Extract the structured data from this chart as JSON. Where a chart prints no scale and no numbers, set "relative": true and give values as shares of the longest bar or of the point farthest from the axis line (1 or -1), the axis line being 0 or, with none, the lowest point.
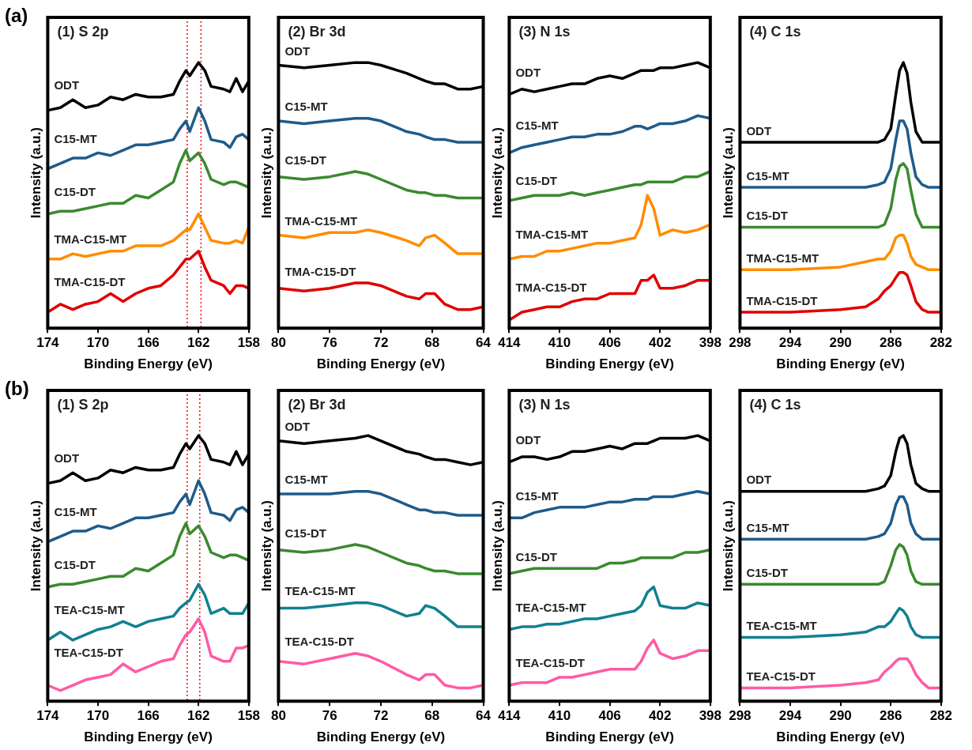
{
  "chart_data": [
    {
      "type": "line",
      "title": "(1) S 2p",
      "xlabel": "Binding Energy (eV)",
      "ylabel": "Intensity (a.u.)",
      "relative": true,
      "tick_labels": "x",
      "xlim": [
        174,
        158
      ],
      "xticks": [
        174,
        170,
        166,
        162,
        158
      ],
      "annotations": [
        "(a)"
      ],
      "ref_lines": [
        {
          "axis": "x",
          "value": 162.9,
          "color": "#ff0000",
          "line_style": "dotted"
        },
        {
          "axis": "x",
          "value": 161.8,
          "color": "#ff0000",
          "line_style": "dotted"
        }
      ],
      "x": [
        174,
        173,
        172,
        171,
        170,
        169,
        168,
        167,
        166,
        165,
        164,
        163.5,
        163,
        162.7,
        162,
        161.5,
        161,
        160,
        159.5,
        159,
        158.5,
        158
      ],
      "series": [
        {
          "name": "ODT",
          "color": "#000000",
          "values": [
            0.82,
            0.83,
            0.86,
            0.83,
            0.84,
            0.87,
            0.86,
            0.88,
            0.87,
            0.87,
            0.88,
            0.93,
            0.97,
            0.95,
            1,
            0.97,
            0.91,
            0.9,
            0.89,
            0.94,
            0.89,
            0.93
          ]
        },
        {
          "name": "C15-MT",
          "color": "#1f5b8a",
          "values": [
            0.6,
            0.62,
            0.64,
            0.64,
            0.66,
            0.65,
            0.67,
            0.69,
            0.69,
            0.7,
            0.71,
            0.75,
            0.78,
            0.74,
            0.83,
            0.78,
            0.71,
            0.7,
            0.68,
            0.72,
            0.73,
            0.71
          ]
        },
        {
          "name": "C15-DT",
          "color": "#3a8a2e",
          "values": [
            0.43,
            0.44,
            0.44,
            0.45,
            0.46,
            0.47,
            0.47,
            0.5,
            0.49,
            0.52,
            0.55,
            0.62,
            0.67,
            0.63,
            0.66,
            0.62,
            0.56,
            0.54,
            0.55,
            0.55,
            0.54,
            0.53
          ]
        },
        {
          "name": "TMA-C15-MT",
          "color": "#ff8c00",
          "values": [
            0.26,
            0.26,
            0.28,
            0.27,
            0.28,
            0.29,
            0.29,
            0.31,
            0.31,
            0.31,
            0.33,
            0.35,
            0.37,
            0.37,
            0.43,
            0.38,
            0.33,
            0.32,
            0.32,
            0.33,
            0.32,
            0.38
          ]
        },
        {
          "name": "TMA-C15-DT",
          "color": "#e00000",
          "values": [
            0.06,
            0.09,
            0.07,
            0.09,
            0.1,
            0.13,
            0.1,
            0.13,
            0.15,
            0.16,
            0.2,
            0.23,
            0.26,
            0.26,
            0.29,
            0.23,
            0.18,
            0.16,
            0.13,
            0.16,
            0.16,
            0.15
          ]
        }
      ]
    },
    {
      "type": "line",
      "title": "(2) Br 3d",
      "xlabel": "Binding Energy (eV)",
      "ylabel": "Intensity (a.u.)",
      "relative": true,
      "tick_labels": "x",
      "xlim": [
        80,
        64
      ],
      "xticks": [
        80,
        76,
        72,
        68,
        64
      ],
      "x": [
        80,
        78,
        76,
        74,
        73,
        72,
        70,
        69,
        68.5,
        67.8,
        67,
        66,
        65,
        64
      ],
      "series": [
        {
          "name": "ODT",
          "color": "#000000",
          "values": [
            0.99,
            0.98,
            0.99,
            1,
            1,
            0.99,
            0.96,
            0.94,
            0.93,
            0.92,
            0.92,
            0.9,
            0.9,
            0.91
          ]
        },
        {
          "name": "C15-MT",
          "color": "#1f5b8a",
          "values": [
            0.78,
            0.77,
            0.78,
            0.79,
            0.79,
            0.78,
            0.74,
            0.73,
            0.72,
            0.71,
            0.71,
            0.7,
            0.7,
            0.7
          ]
        },
        {
          "name": "C15-DT",
          "color": "#3a8a2e",
          "values": [
            0.57,
            0.56,
            0.57,
            0.59,
            0.58,
            0.56,
            0.52,
            0.51,
            0.51,
            0.5,
            0.5,
            0.49,
            0.49,
            0.49
          ]
        },
        {
          "name": "TMA-C15-MT",
          "color": "#ff8c00",
          "values": [
            0.35,
            0.34,
            0.36,
            0.36,
            0.37,
            0.36,
            0.33,
            0.31,
            0.34,
            0.35,
            0.32,
            0.28,
            0.28,
            0.28
          ]
        },
        {
          "name": "TMA-C15-DT",
          "color": "#e00000",
          "values": [
            0.15,
            0.14,
            0.15,
            0.17,
            0.17,
            0.16,
            0.12,
            0.11,
            0.13,
            0.13,
            0.09,
            0.07,
            0.07,
            0.08
          ]
        }
      ]
    },
    {
      "type": "line",
      "title": "(3) N 1s",
      "xlabel": "Binding Energy (eV)",
      "ylabel": "Intensity (a.u.)",
      "relative": true,
      "tick_labels": "x",
      "xlim": [
        414,
        398
      ],
      "xticks": [
        414,
        410,
        406,
        402,
        398
      ],
      "x": [
        414,
        413,
        412,
        411,
        410,
        409,
        408,
        407,
        406,
        405,
        404,
        403.5,
        403,
        402.5,
        402,
        401,
        400,
        399,
        398
      ],
      "series": [
        {
          "name": "ODT",
          "color": "#000000",
          "values": [
            0.88,
            0.9,
            0.89,
            0.9,
            0.91,
            0.92,
            0.92,
            0.94,
            0.95,
            0.94,
            0.96,
            0.97,
            0.97,
            0.97,
            0.98,
            0.98,
            0.99,
            1,
            0.98
          ]
        },
        {
          "name": "C15-MT",
          "color": "#1f5b8a",
          "values": [
            0.66,
            0.68,
            0.69,
            0.7,
            0.71,
            0.72,
            0.72,
            0.73,
            0.73,
            0.74,
            0.76,
            0.76,
            0.75,
            0.76,
            0.77,
            0.77,
            0.78,
            0.8,
            0.79
          ]
        },
        {
          "name": "C15-DT",
          "color": "#3a8a2e",
          "values": [
            0.48,
            0.49,
            0.5,
            0.5,
            0.5,
            0.51,
            0.5,
            0.51,
            0.52,
            0.53,
            0.54,
            0.54,
            0.55,
            0.55,
            0.55,
            0.55,
            0.57,
            0.57,
            0.59
          ]
        },
        {
          "name": "TMA-C15-MT",
          "color": "#ff8c00",
          "values": [
            0.26,
            0.27,
            0.27,
            0.29,
            0.29,
            0.3,
            0.31,
            0.32,
            0.32,
            0.33,
            0.34,
            0.39,
            0.5,
            0.45,
            0.35,
            0.37,
            0.36,
            0.37,
            0.39
          ]
        },
        {
          "name": "TMA-C15-DT",
          "color": "#e00000",
          "values": [
            0.03,
            0.06,
            0.07,
            0.08,
            0.08,
            0.1,
            0.11,
            0.11,
            0.13,
            0.13,
            0.13,
            0.18,
            0.18,
            0.2,
            0.15,
            0.15,
            0.16,
            0.18,
            0.18
          ]
        }
      ]
    },
    {
      "type": "line",
      "title": "(4) C 1s",
      "xlabel": "Binding Energy (eV)",
      "ylabel": "Intensity (a.u.)",
      "relative": true,
      "tick_labels": "x",
      "xlim": [
        298,
        282
      ],
      "xticks": [
        298,
        294,
        290,
        286,
        282
      ],
      "x": [
        298,
        294,
        290,
        288,
        287,
        286.5,
        286,
        285.6,
        285.3,
        285,
        284.7,
        284.4,
        284,
        283.5,
        283,
        282
      ],
      "series": [
        {
          "name": "ODT",
          "color": "#000000",
          "values": [
            0.7,
            0.7,
            0.7,
            0.7,
            0.7,
            0.71,
            0.75,
            0.88,
            0.97,
            1,
            0.96,
            0.85,
            0.74,
            0.7,
            0.7,
            0.7
          ]
        },
        {
          "name": "C15-MT",
          "color": "#1f5b8a",
          "values": [
            0.53,
            0.53,
            0.53,
            0.53,
            0.54,
            0.55,
            0.6,
            0.71,
            0.78,
            0.78,
            0.75,
            0.66,
            0.57,
            0.54,
            0.53,
            0.53
          ]
        },
        {
          "name": "C15-DT",
          "color": "#3a8a2e",
          "values": [
            0.38,
            0.38,
            0.38,
            0.38,
            0.38,
            0.39,
            0.45,
            0.56,
            0.61,
            0.62,
            0.6,
            0.52,
            0.43,
            0.38,
            0.38,
            0.38
          ]
        },
        {
          "name": "TMA-C15-MT",
          "color": "#ff8c00",
          "values": [
            0.22,
            0.22,
            0.23,
            0.25,
            0.26,
            0.26,
            0.29,
            0.34,
            0.35,
            0.35,
            0.32,
            0.27,
            0.24,
            0.23,
            0.22,
            0.22
          ]
        },
        {
          "name": "TMA-C15-DT",
          "color": "#e00000",
          "values": [
            0.06,
            0.06,
            0.07,
            0.08,
            0.11,
            0.14,
            0.16,
            0.19,
            0.21,
            0.21,
            0.2,
            0.16,
            0.1,
            0.07,
            0.06,
            0.06
          ]
        }
      ]
    },
    {
      "type": "line",
      "title": "(1) S 2p",
      "xlabel": "Binding Energy (eV)",
      "ylabel": "Intensity (a.u.)",
      "relative": true,
      "tick_labels": "x",
      "xlim": [
        174,
        158
      ],
      "xticks": [
        174,
        170,
        166,
        162,
        158
      ],
      "annotations": [
        "(b)"
      ],
      "ref_lines": [
        {
          "axis": "x",
          "value": 162.9,
          "color": "#ff0000",
          "line_style": "dotted"
        },
        {
          "axis": "x",
          "value": 161.9,
          "color": "#ff0000",
          "line_style": "dotted"
        }
      ],
      "x": [
        174,
        173,
        172,
        171,
        170,
        169,
        168,
        167,
        166,
        165,
        164,
        163.5,
        163,
        162.7,
        162,
        161.5,
        161,
        160,
        159.5,
        159,
        158.5,
        158
      ],
      "series": [
        {
          "name": "ODT",
          "color": "#000000",
          "values": [
            0.82,
            0.83,
            0.86,
            0.83,
            0.84,
            0.87,
            0.86,
            0.88,
            0.87,
            0.87,
            0.88,
            0.93,
            0.97,
            0.95,
            1,
            0.97,
            0.91,
            0.9,
            0.89,
            0.94,
            0.89,
            0.93
          ]
        },
        {
          "name": "C15-MT",
          "color": "#1f5b8a",
          "values": [
            0.6,
            0.62,
            0.64,
            0.64,
            0.66,
            0.65,
            0.67,
            0.69,
            0.69,
            0.7,
            0.71,
            0.75,
            0.78,
            0.74,
            0.83,
            0.78,
            0.71,
            0.7,
            0.68,
            0.72,
            0.73,
            0.71
          ]
        },
        {
          "name": "C15-DT",
          "color": "#3a8a2e",
          "values": [
            0.43,
            0.44,
            0.44,
            0.45,
            0.46,
            0.47,
            0.47,
            0.5,
            0.49,
            0.52,
            0.55,
            0.62,
            0.67,
            0.63,
            0.66,
            0.62,
            0.56,
            0.54,
            0.55,
            0.55,
            0.54,
            0.53
          ]
        },
        {
          "name": "TEA-C15-MT",
          "color": "#118090",
          "values": [
            0.23,
            0.26,
            0.23,
            0.25,
            0.27,
            0.28,
            0.3,
            0.28,
            0.3,
            0.31,
            0.32,
            0.35,
            0.37,
            0.38,
            0.44,
            0.4,
            0.33,
            0.35,
            0.33,
            0.33,
            0.33,
            0.37
          ]
        },
        {
          "name": "TEA-C15-DT",
          "color": "#ff5aa5",
          "values": [
            0.06,
            0.04,
            0.06,
            0.08,
            0.09,
            0.1,
            0.14,
            0.11,
            0.13,
            0.15,
            0.16,
            0.21,
            0.25,
            0.26,
            0.31,
            0.26,
            0.17,
            0.15,
            0.15,
            0.2,
            0.2,
            0.21
          ]
        }
      ]
    },
    {
      "type": "line",
      "title": "(2) Br 3d",
      "xlabel": "Binding Energy (eV)",
      "ylabel": "Intensity (a.u.)",
      "relative": true,
      "tick_labels": "x",
      "xlim": [
        80,
        64
      ],
      "xticks": [
        80,
        76,
        72,
        68,
        64
      ],
      "x": [
        80,
        78,
        76,
        74,
        73,
        72,
        70,
        69,
        68.5,
        67.8,
        67,
        66,
        65,
        64
      ],
      "series": [
        {
          "name": "ODT",
          "color": "#000000",
          "values": [
            0.98,
            0.97,
            0.98,
            0.99,
            1,
            0.98,
            0.94,
            0.93,
            0.92,
            0.91,
            0.91,
            0.9,
            0.89,
            0.9
          ]
        },
        {
          "name": "C15-MT",
          "color": "#1f5b8a",
          "values": [
            0.78,
            0.78,
            0.78,
            0.79,
            0.79,
            0.78,
            0.74,
            0.72,
            0.72,
            0.71,
            0.71,
            0.7,
            0.7,
            0.7
          ]
        },
        {
          "name": "C15-DT",
          "color": "#3a8a2e",
          "values": [
            0.57,
            0.56,
            0.57,
            0.59,
            0.58,
            0.56,
            0.52,
            0.51,
            0.5,
            0.49,
            0.49,
            0.48,
            0.48,
            0.48
          ]
        },
        {
          "name": "TEA-C15-MT",
          "color": "#118090",
          "values": [
            0.35,
            0.35,
            0.36,
            0.37,
            0.37,
            0.36,
            0.32,
            0.33,
            0.36,
            0.35,
            0.32,
            0.28,
            0.28,
            0.28
          ]
        },
        {
          "name": "TEA-C15-DT",
          "color": "#ff5aa5",
          "values": [
            0.15,
            0.14,
            0.16,
            0.18,
            0.17,
            0.15,
            0.1,
            0.08,
            0.1,
            0.1,
            0.06,
            0.05,
            0.05,
            0.06
          ]
        }
      ]
    },
    {
      "type": "line",
      "title": "(3) N 1s",
      "xlabel": "Binding Energy (eV)",
      "ylabel": "Intensity (a.u.)",
      "relative": true,
      "tick_labels": "x",
      "xlim": [
        414,
        398
      ],
      "xticks": [
        414,
        410,
        406,
        402,
        398
      ],
      "x": [
        414,
        413,
        412,
        411,
        410,
        409,
        408,
        407,
        406,
        405,
        404,
        403.5,
        403,
        402.5,
        402,
        401,
        400,
        399,
        398
      ],
      "series": [
        {
          "name": "ODT",
          "color": "#000000",
          "values": [
            0.9,
            0.92,
            0.92,
            0.91,
            0.92,
            0.94,
            0.94,
            0.95,
            0.96,
            0.95,
            0.97,
            0.97,
            0.97,
            0.98,
            0.99,
            0.99,
            0.99,
            1,
            0.98
          ]
        },
        {
          "name": "C15-MT",
          "color": "#1f5b8a",
          "values": [
            0.69,
            0.69,
            0.71,
            0.72,
            0.73,
            0.73,
            0.73,
            0.74,
            0.75,
            0.75,
            0.76,
            0.76,
            0.76,
            0.77,
            0.77,
            0.77,
            0.78,
            0.79,
            0.78
          ]
        },
        {
          "name": "C15-DT",
          "color": "#3a8a2e",
          "values": [
            0.48,
            0.49,
            0.5,
            0.5,
            0.5,
            0.5,
            0.5,
            0.5,
            0.52,
            0.52,
            0.53,
            0.54,
            0.54,
            0.54,
            0.54,
            0.54,
            0.56,
            0.56,
            0.57
          ]
        },
        {
          "name": "TEA-C15-MT",
          "color": "#118090",
          "values": [
            0.27,
            0.28,
            0.28,
            0.29,
            0.29,
            0.3,
            0.31,
            0.31,
            0.32,
            0.33,
            0.34,
            0.36,
            0.41,
            0.43,
            0.36,
            0.35,
            0.35,
            0.37,
            0.36
          ]
        },
        {
          "name": "TEA-C15-DT",
          "color": "#ff5aa5",
          "values": [
            0.06,
            0.07,
            0.07,
            0.07,
            0.09,
            0.09,
            0.1,
            0.11,
            0.12,
            0.12,
            0.12,
            0.15,
            0.2,
            0.23,
            0.18,
            0.16,
            0.17,
            0.19,
            0.19
          ]
        }
      ]
    },
    {
      "type": "line",
      "title": "(4) C 1s",
      "xlabel": "Binding Energy (eV)",
      "ylabel": "Intensity (a.u.)",
      "relative": true,
      "tick_labels": "x",
      "xlim": [
        298,
        282
      ],
      "xticks": [
        298,
        294,
        290,
        286,
        282
      ],
      "x": [
        298,
        294,
        290,
        288,
        287,
        286.5,
        286,
        285.6,
        285.3,
        285,
        284.7,
        284.4,
        284,
        283.5,
        283,
        282
      ],
      "series": [
        {
          "name": "ODT",
          "color": "#000000",
          "values": [
            0.79,
            0.79,
            0.79,
            0.79,
            0.8,
            0.81,
            0.85,
            0.94,
            0.99,
            1,
            0.97,
            0.89,
            0.82,
            0.8,
            0.79,
            0.79
          ]
        },
        {
          "name": "C15-MT",
          "color": "#1f5b8a",
          "values": [
            0.61,
            0.61,
            0.61,
            0.61,
            0.62,
            0.63,
            0.67,
            0.74,
            0.77,
            0.77,
            0.74,
            0.67,
            0.63,
            0.61,
            0.61,
            0.61
          ]
        },
        {
          "name": "C15-DT",
          "color": "#3a8a2e",
          "values": [
            0.44,
            0.44,
            0.44,
            0.44,
            0.44,
            0.45,
            0.51,
            0.57,
            0.59,
            0.58,
            0.55,
            0.49,
            0.45,
            0.44,
            0.44,
            0.44
          ]
        },
        {
          "name": "TEA-C15-MT",
          "color": "#118090",
          "values": [
            0.24,
            0.24,
            0.25,
            0.26,
            0.28,
            0.28,
            0.3,
            0.33,
            0.35,
            0.34,
            0.32,
            0.28,
            0.25,
            0.24,
            0.24,
            0.24
          ]
        },
        {
          "name": "TEA-C15-DT",
          "color": "#ff5aa5",
          "values": [
            0.05,
            0.05,
            0.06,
            0.07,
            0.08,
            0.11,
            0.13,
            0.15,
            0.16,
            0.16,
            0.16,
            0.14,
            0.1,
            0.07,
            0.05,
            0.05
          ]
        }
      ]
    }
  ]
}
